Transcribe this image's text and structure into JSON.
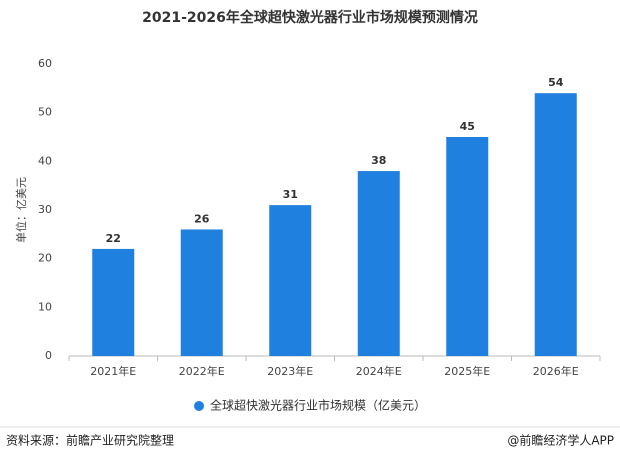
{
  "chart_data": {
    "type": "bar",
    "title": "2021-2026年全球超快激光器行业市场规模预测情况",
    "y_label": "单位：亿美元",
    "categories": [
      "2021年E",
      "2022年E",
      "2023年E",
      "2024年E",
      "2025年E",
      "2026年E"
    ],
    "series": [
      {
        "name": "全球超快激光器行业市场规模（亿美元）",
        "color": "#1f80e0",
        "values": [
          22,
          26,
          31,
          38,
          45,
          54
        ]
      }
    ],
    "ylim": [
      0,
      60
    ],
    "yticks": [
      0,
      10,
      20,
      30,
      40,
      50,
      60
    ],
    "grid": false,
    "legend": "bottom",
    "source": "资料来源：前瞻产业研究院整理",
    "credit": "@前瞻经济学人APP"
  }
}
